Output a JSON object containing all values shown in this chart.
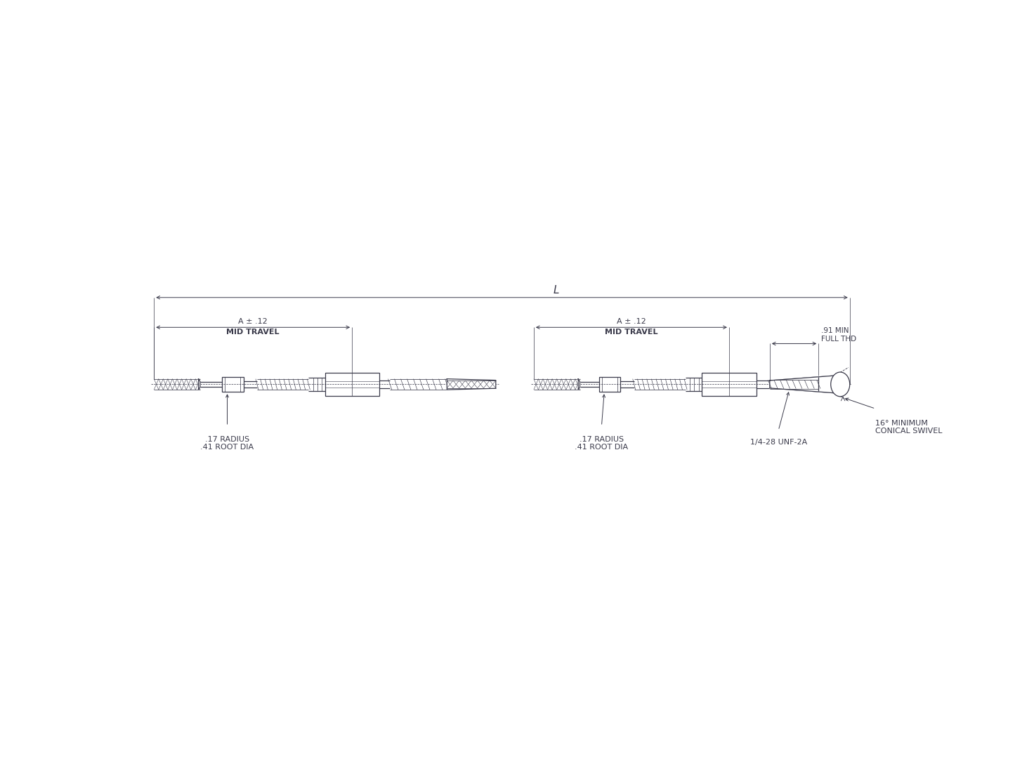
{
  "bg_color": "#ffffff",
  "line_color": "#3a3a4a",
  "text_color": "#3a3a4a",
  "fig_width": 14.45,
  "fig_height": 10.84,
  "dim_fontsize": 8.0,
  "annotations": {
    "L_label": "L",
    "A_label_left": "A ± .12",
    "mid_travel_left": "MID TRAVEL",
    "A_label_right": "A ± .12",
    "mid_travel_right": "MID TRAVEL",
    "radius_left": ".17 RADIUS\n.41 ROOT DIA",
    "radius_right": ".17 RADIUS\n.41 ROOT DIA",
    "full_thd": ".91 MIN\nFULL THD",
    "unf": "1/4-28 UNF-2A",
    "conical": "16° MINIMUM\nCONICAL SWIVEL"
  }
}
